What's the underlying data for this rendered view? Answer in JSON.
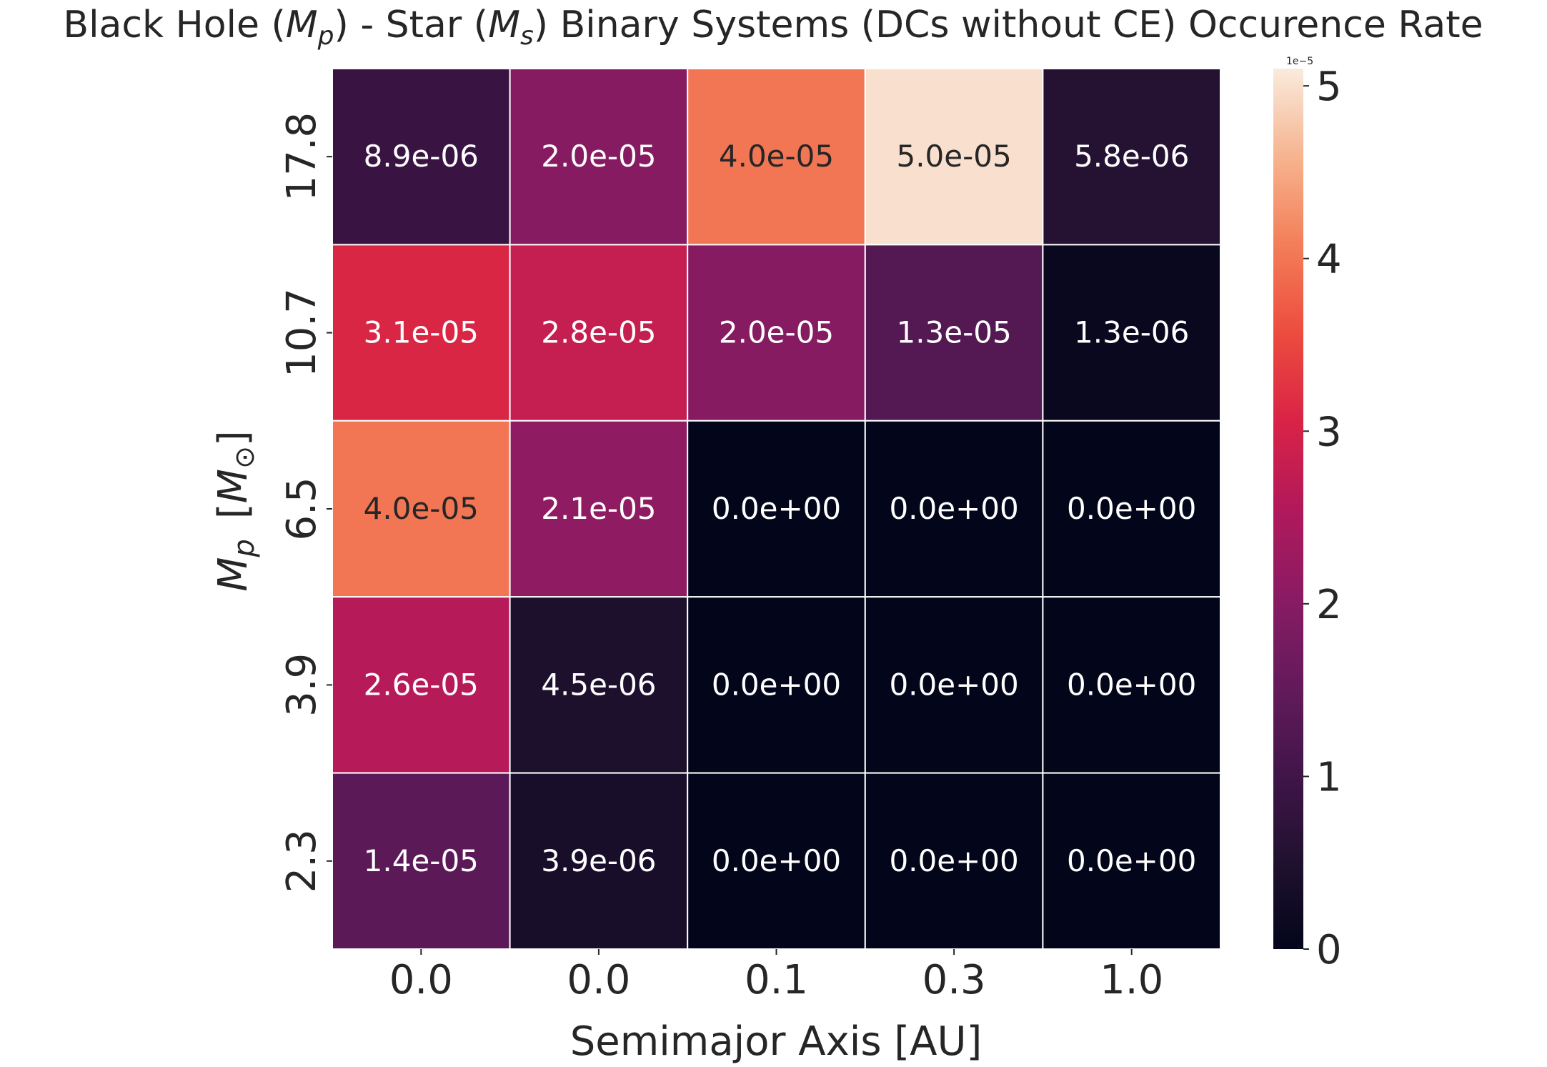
{
  "chart_data": {
    "type": "heatmap",
    "title": {
      "prefix": "Black Hole (",
      "mp": "M",
      "mp_sub": "p",
      "mid": ")  - Star (",
      "ms": "M",
      "ms_sub": "s",
      "suffix": ") Binary Systems (DCs without CE) Occurence Rate"
    },
    "xlabel": "Semimajor Axis [AU]",
    "ylabel": {
      "symbol": "M",
      "sub": "p",
      "unit_open": "[",
      "unit_symbol": "M",
      "unit_sub": "⊙",
      "unit_close": "]"
    },
    "x_categories": [
      "0.0",
      "0.0",
      "0.1",
      "0.3",
      "1.0"
    ],
    "y_categories": [
      "17.8",
      "10.7",
      "6.5",
      "3.9",
      "2.3"
    ],
    "values": [
      [
        8.9e-06,
        2e-05,
        4e-05,
        5e-05,
        5.8e-06
      ],
      [
        3.1e-05,
        2.8e-05,
        2e-05,
        1.3e-05,
        1.3e-06
      ],
      [
        4e-05,
        2.1e-05,
        0.0,
        0.0,
        0.0
      ],
      [
        2.6e-05,
        4.5e-06,
        0.0,
        0.0,
        0.0
      ],
      [
        1.4e-05,
        3.9e-06,
        0.0,
        0.0,
        0.0
      ]
    ],
    "annotations": [
      [
        "8.9e-06",
        "2.0e-05",
        "4.0e-05",
        "5.0e-05",
        "5.8e-06"
      ],
      [
        "3.1e-05",
        "2.8e-05",
        "2.0e-05",
        "1.3e-05",
        "1.3e-06"
      ],
      [
        "4.0e-05",
        "2.1e-05",
        "0.0e+00",
        "0.0e+00",
        "0.0e+00"
      ],
      [
        "2.6e-05",
        "4.5e-06",
        "0.0e+00",
        "0.0e+00",
        "0.0e+00"
      ],
      [
        "1.4e-05",
        "3.9e-06",
        "0.0e+00",
        "0.0e+00",
        "0.0e+00"
      ]
    ],
    "colorbar": {
      "vmin": 0,
      "vmax": 5.1e-05,
      "ticks": [
        0,
        1e-05,
        2e-05,
        3e-05,
        4e-05,
        5e-05
      ],
      "tick_labels": [
        "0",
        "1",
        "2",
        "3",
        "4",
        "5"
      ],
      "multiplier": "1e−5"
    },
    "colormap": "rocket",
    "grid": false,
    "cell_border_color": "#ffffff"
  }
}
